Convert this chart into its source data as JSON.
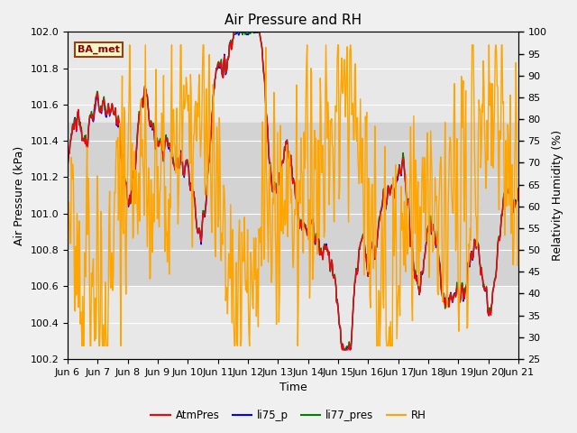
{
  "title": "Air Pressure and RH",
  "xlabel": "Time",
  "ylabel_left": "Air Pressure (kPa)",
  "ylabel_right": "Relativity Humidity (%)",
  "legend_label": "BA_met",
  "series_labels": [
    "AtmPres",
    "li75_p",
    "li77_pres",
    "RH"
  ],
  "series_colors": [
    "red",
    "blue",
    "green",
    "orange"
  ],
  "ylim_left": [
    100.2,
    102.0
  ],
  "ylim_right": [
    25,
    100
  ],
  "yticks_left": [
    100.2,
    100.4,
    100.6,
    100.8,
    101.0,
    101.2,
    101.4,
    101.6,
    101.8,
    102.0
  ],
  "yticks_right": [
    25,
    30,
    35,
    40,
    45,
    50,
    55,
    60,
    65,
    70,
    75,
    80,
    85,
    90,
    95,
    100
  ],
  "xtick_labels": [
    "Jun 6",
    "Jun 7",
    "Jun 8",
    "Jun 9",
    "Jun 10",
    "Jun 11",
    "Jun 12",
    "Jun 13",
    "Jun 14",
    "Jun 15",
    "Jun 16",
    "Jun 17",
    "Jun 18",
    "Jun 19",
    "Jun 20",
    "Jun 21"
  ],
  "background_color": "#f0f0f0",
  "plot_bg_color": "#e8e8e8",
  "band_color": "#d3d3d3",
  "band_ylim": [
    100.6,
    101.5
  ],
  "title_fontsize": 11,
  "label_fontsize": 9,
  "tick_fontsize": 8
}
